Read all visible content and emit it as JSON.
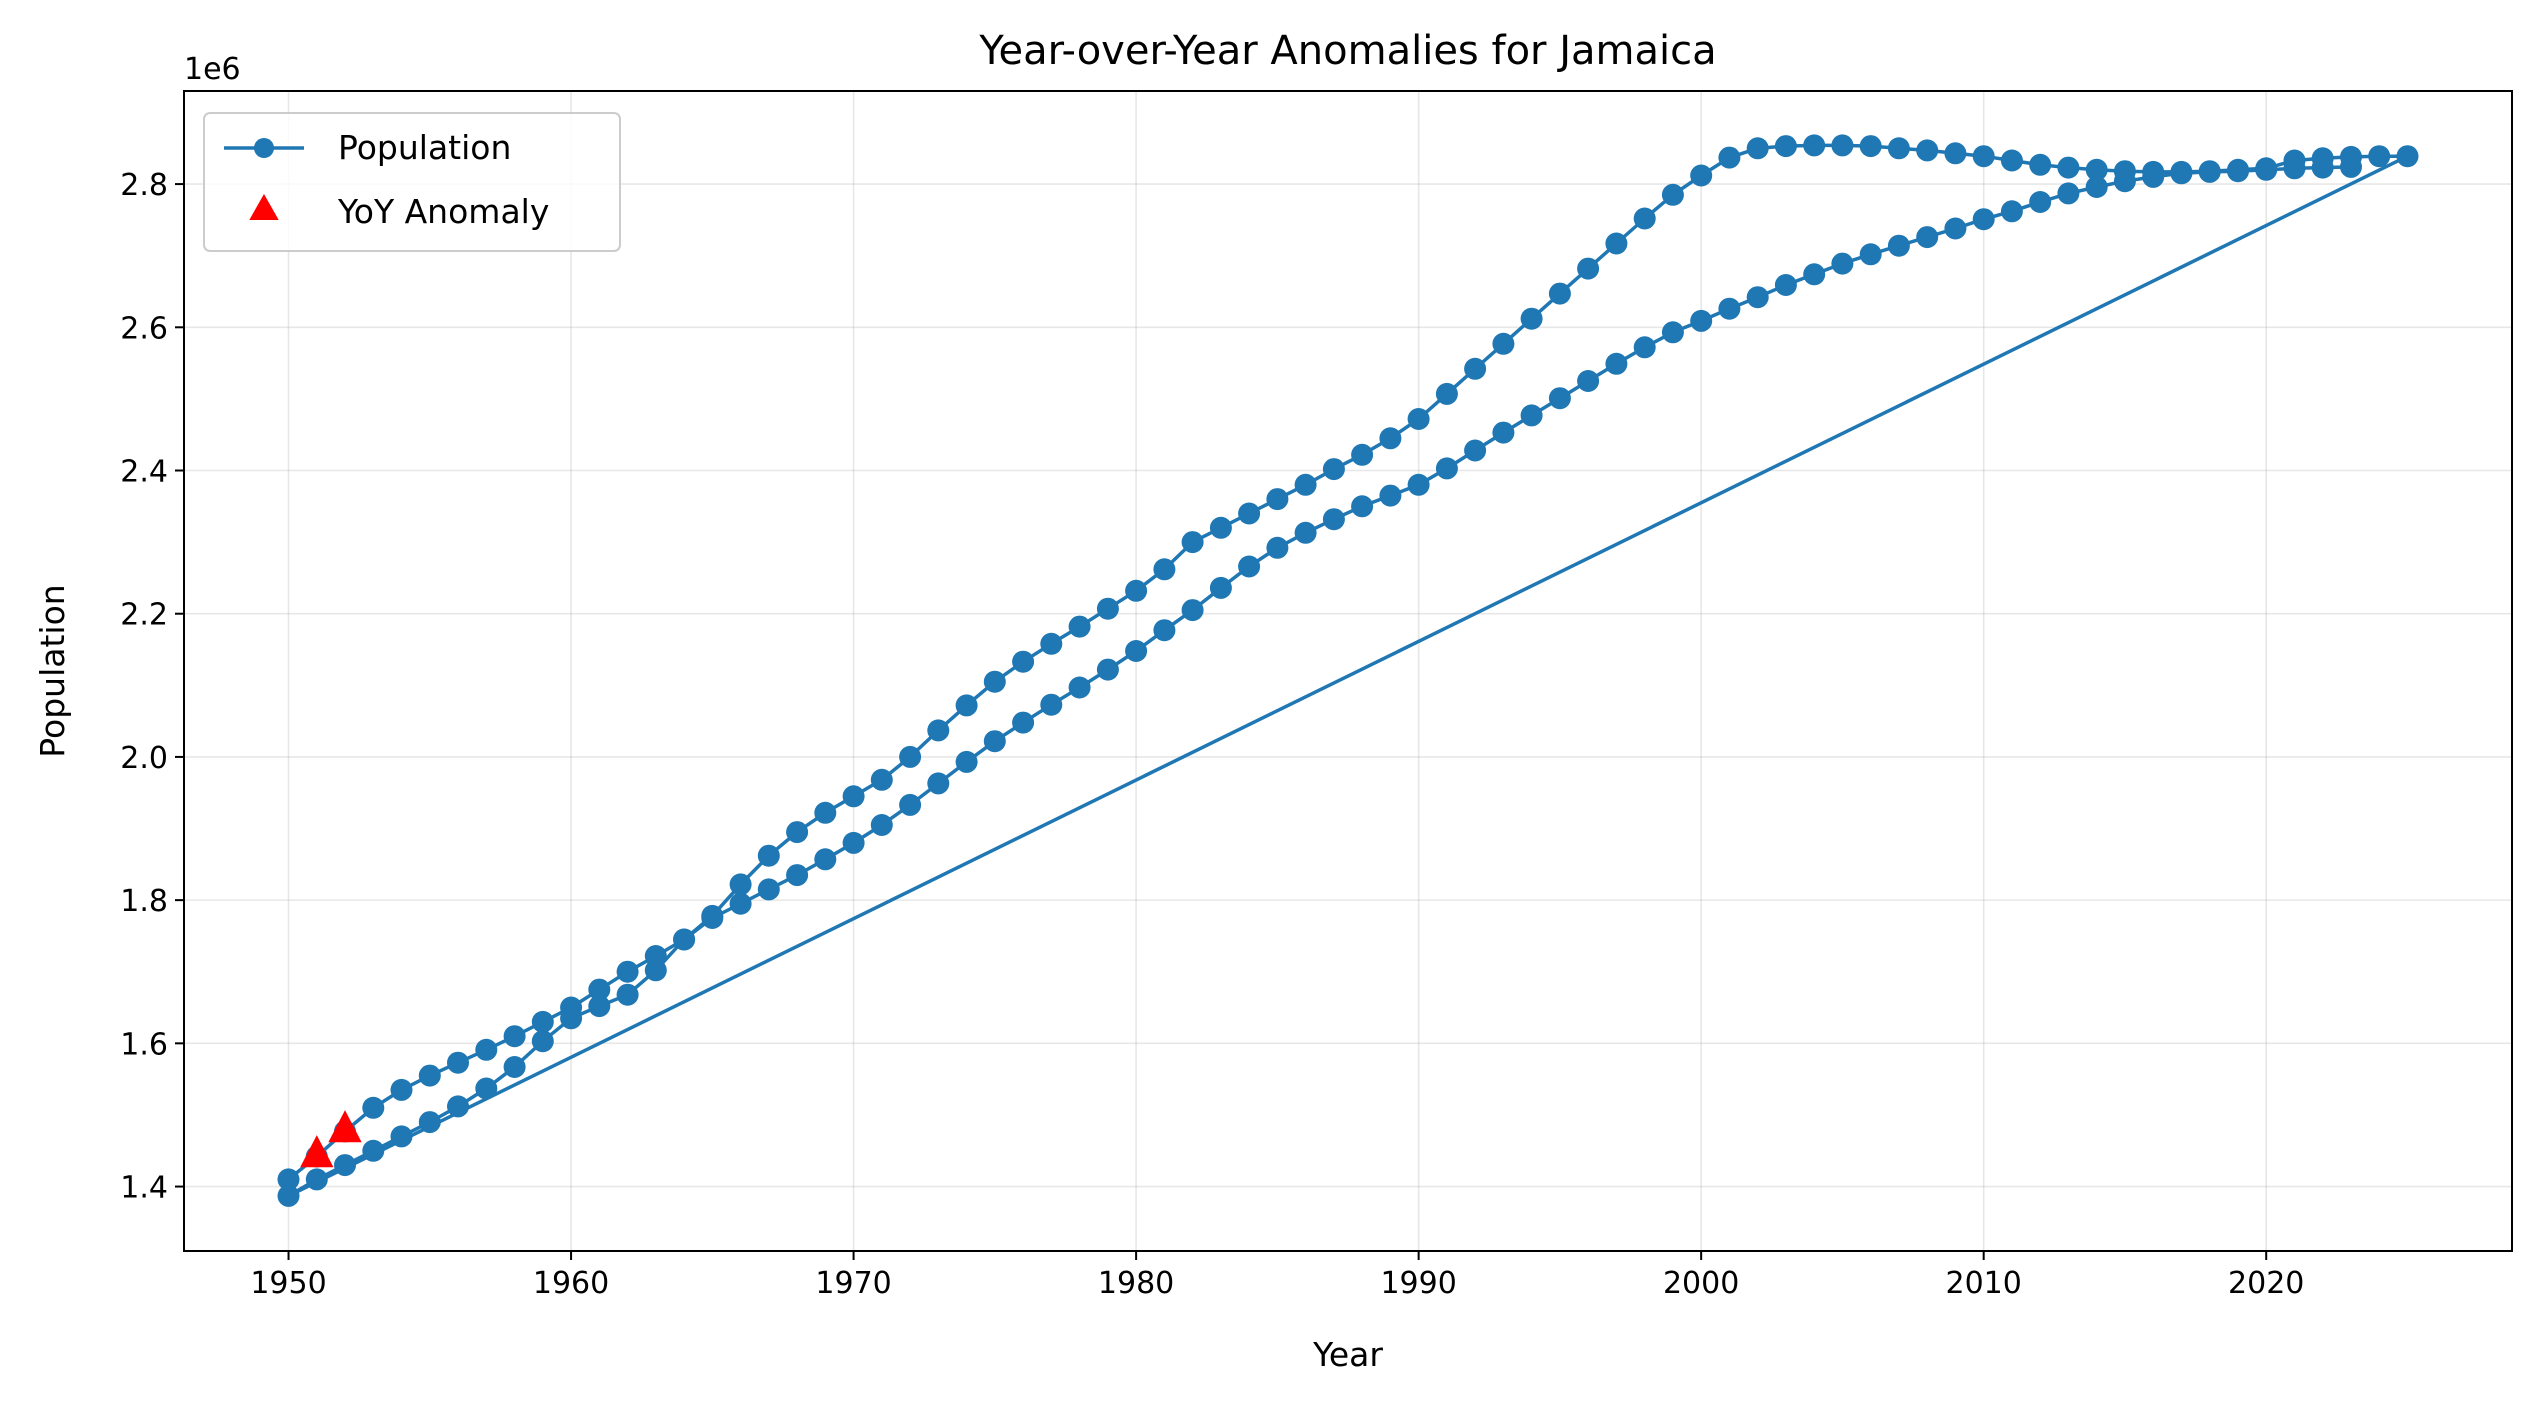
{
  "chart_data": {
    "type": "line",
    "title": "Year-over-Year Anomalies for Jamaica",
    "xlabel": "Year",
    "ylabel": "Population",
    "y_offset_text": "1e6",
    "xlim": [
      1946.3,
      1928.7
    ],
    "ylim": [
      1310000,
      2930000
    ],
    "x_ticks": [
      1950,
      1960,
      1970,
      1980,
      1990,
      2000,
      2010,
      2020
    ],
    "x_tick_labels": [
      "1950",
      "1960",
      "1970",
      "1980",
      "1990",
      "2000",
      "2010",
      "2020"
    ],
    "y_ticks": [
      1400000,
      1600000,
      1800000,
      2000000,
      2200000,
      2400000,
      2600000,
      2800000
    ],
    "y_tick_labels": [
      "1.4",
      "1.6",
      "1.8",
      "2.0",
      "2.2",
      "2.4",
      "2.6",
      "2.8"
    ],
    "grid": true,
    "legend_position": "top-left",
    "colors": {
      "series": "#1f77b4",
      "anomaly": "#ff0000"
    },
    "series": [
      {
        "name": "Population",
        "style": "line-marker",
        "x": [
          1950,
          1951,
          1952,
          1953,
          1954,
          1955,
          1956,
          1957,
          1958,
          1959,
          1960,
          1961,
          1962,
          1963,
          1964,
          1965,
          1966,
          1967,
          1968,
          1969,
          1970,
          1971,
          1972,
          1973,
          1974,
          1975,
          1976,
          1977,
          1978,
          1979,
          1980,
          1981,
          1982,
          1983,
          1984,
          1985,
          1986,
          1987,
          1988,
          1989,
          1990,
          1991,
          1992,
          1993,
          1994,
          1995,
          1996,
          1997,
          1998,
          1999,
          2000,
          2001,
          2002,
          2003,
          2004,
          2005,
          2006,
          2007,
          2008,
          2009,
          2010,
          2011,
          2012,
          2013,
          2014,
          2015,
          2016,
          2017,
          2018,
          2019,
          2020,
          2021,
          2022,
          2023,
          2024,
          2025,
          1950,
          1951,
          1952,
          1953,
          1954,
          1955,
          1956,
          1957,
          1958,
          1959,
          1960,
          1961,
          1962,
          1963,
          1964,
          1965,
          1966,
          1967,
          1968,
          1969,
          1970,
          1971,
          1972,
          1973,
          1974,
          1975,
          1976,
          1977,
          1978,
          1979,
          1980,
          1981,
          1982,
          1983,
          1984,
          1985,
          1986,
          1987,
          1988,
          1989,
          1990,
          1991,
          1992,
          1993,
          1994,
          1995,
          1996,
          1997,
          1998,
          1999,
          2000,
          2001,
          2002,
          2003,
          2004,
          2005,
          2006,
          2007,
          2008,
          2009,
          2010,
          2011,
          2012,
          2013,
          2014,
          2015,
          2016,
          2017,
          2018,
          2019,
          2020,
          2021,
          2022,
          2023
        ],
        "y": [
          1410000,
          1442000,
          1477000,
          1510000,
          1535000,
          1555000,
          1573000,
          1591000,
          1610000,
          1630000,
          1650000,
          1675000,
          1700000,
          1722000,
          1745000,
          1778000,
          1822000,
          1862000,
          1895000,
          1922000,
          1945000,
          1968000,
          2000000,
          2037000,
          2072000,
          2105000,
          2133000,
          2158000,
          2182000,
          2207000,
          2232000,
          2262000,
          2300000,
          2320000,
          2340000,
          2360000,
          2380000,
          2402000,
          2422000,
          2445000,
          2472000,
          2507000,
          2542000,
          2577000,
          2612000,
          2647000,
          2682000,
          2717000,
          2752000,
          2785000,
          2812000,
          2837000,
          2850000,
          2853000,
          2854000,
          2854000,
          2853000,
          2850000,
          2847000,
          2843000,
          2839000,
          2833000,
          2827000,
          2823000,
          2820000,
          2818000,
          2817000,
          2817000,
          2818000,
          2820000,
          2822000,
          2833000,
          2836000,
          2838000,
          2839000,
          2839000,
          1387000,
          1410000,
          1430000,
          1450000,
          1470000,
          1490000,
          1512000,
          1537000,
          1567000,
          1603000,
          1635000,
          1652000,
          1668000,
          1702000,
          1745000,
          1775000,
          1795000,
          1815000,
          1835000,
          1857000,
          1880000,
          1905000,
          1933000,
          1963000,
          1993000,
          2022000,
          2048000,
          2073000,
          2097000,
          2122000,
          2148000,
          2177000,
          2205000,
          2236000,
          2266000,
          2292000,
          2313000,
          2332000,
          2350000,
          2365000,
          2380000,
          2403000,
          2428000,
          2453000,
          2477000,
          2501000,
          2525000,
          2549000,
          2572000,
          2593000,
          2609000,
          2626000,
          2642000,
          2659000,
          2674000,
          2689000,
          2702000,
          2714000,
          2726000,
          2738000,
          2751000,
          2762000,
          2775000,
          2787000,
          2796000,
          2804000,
          2810000,
          2815000,
          2817000,
          2818000,
          2820000,
          2822000,
          2823000,
          2824000
        ]
      },
      {
        "name": "YoY Anomaly",
        "style": "markers",
        "x": [
          1951,
          1952
        ],
        "y": [
          1445000,
          1480000
        ]
      }
    ]
  }
}
